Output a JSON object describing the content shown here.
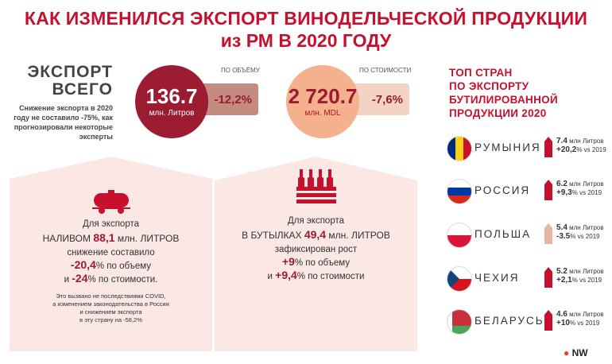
{
  "header": {
    "title_line1": "КАК ИЗМЕНИЛСЯ ЭКСПОРТ ВИНОДЕЛЬЧЕСКОЙ ПРОДУКЦИИ",
    "title_line2": "из РМ В 2020 ГОДУ"
  },
  "total": {
    "heading1": "ЭКСПОРТ",
    "heading2": "ВСЕГО",
    "note": "Снижение экспорта в 2020 году не составило -75%, как прогнозировали некоторые эксперты"
  },
  "volume": {
    "label": "ПО ОБЪЁМУ",
    "value": "136.7",
    "unit": "млн. Литров",
    "change": "-12,2%"
  },
  "value_metric": {
    "label": "ПО СТОИМОСТИ",
    "value": "2 720.7",
    "unit": "млн. MDL",
    "change": "-7,6%"
  },
  "bulk": {
    "icon": "tanker-icon",
    "line1": "Для экспорта",
    "line2_a": "НАЛИВОМ ",
    "line2_b": "88,1",
    "line2_c": " млн. ЛИТРОВ",
    "line3": "снижение составило",
    "line4_a": "-20,4",
    "line4_b": "% по объему",
    "line5_a": "и ",
    "line5_b": "-24",
    "line5_c": "% по стоимости.",
    "small1": "Это вызвано не последствиями COVID,",
    "small2": "а изменением законодательства в России",
    "small3": "и снижением экспорта",
    "small4": "в эту страну на -58,2%"
  },
  "bottled": {
    "icon": "wine-bottles-crate-icon",
    "line1": "Для экспорта",
    "line2_a": "В БУТЫЛКАХ ",
    "line2_b": "49,4",
    "line2_c": " млн. ЛИТРОВ",
    "line3": "зафиксирован рост",
    "line4_a": "+9",
    "line4_b": "% по объему",
    "line5_a": "и ",
    "line5_b": "+9,4",
    "line5_c": "% по стоимости"
  },
  "top": {
    "title": [
      "ТОП СТРАН",
      "ПО ЭКСПОРТУ",
      "БУТИЛИРОВАННОЙ",
      "ПРОДУКЦИИ 2020"
    ],
    "countries": [
      {
        "name": "РУМЫНИЯ",
        "amount": "7.4",
        "unit": " млн Литров",
        "change": "+20,2",
        "vs": "% vs 2019",
        "trend": "up"
      },
      {
        "name": "РОССИЯ",
        "amount": "6.2",
        "unit": " млн Литров",
        "change": "+9,3",
        "vs": "% vs 2019",
        "trend": "up"
      },
      {
        "name": "ПОЛЬША",
        "amount": "5.4",
        "unit": " млн Литров",
        "change": "-3.5",
        "vs": "% vs 2019",
        "trend": "down"
      },
      {
        "name": "ЧЕХИЯ",
        "amount": "5.2",
        "unit": " млн Литров",
        "change": "+2,1",
        "vs": "% vs 2019",
        "trend": "up"
      },
      {
        "name": "БЕЛАРУСЬ",
        "amount": "4.6",
        "unit": " млн Литров",
        "change": "+10",
        "vs": "% vs 2019",
        "trend": "up"
      }
    ]
  },
  "logo": {
    "text": "NW"
  },
  "colors": {
    "accent": "#c8102e",
    "wine": "#9b1b30",
    "peach": "#f5b08d",
    "panel": "#fbe7e3"
  }
}
